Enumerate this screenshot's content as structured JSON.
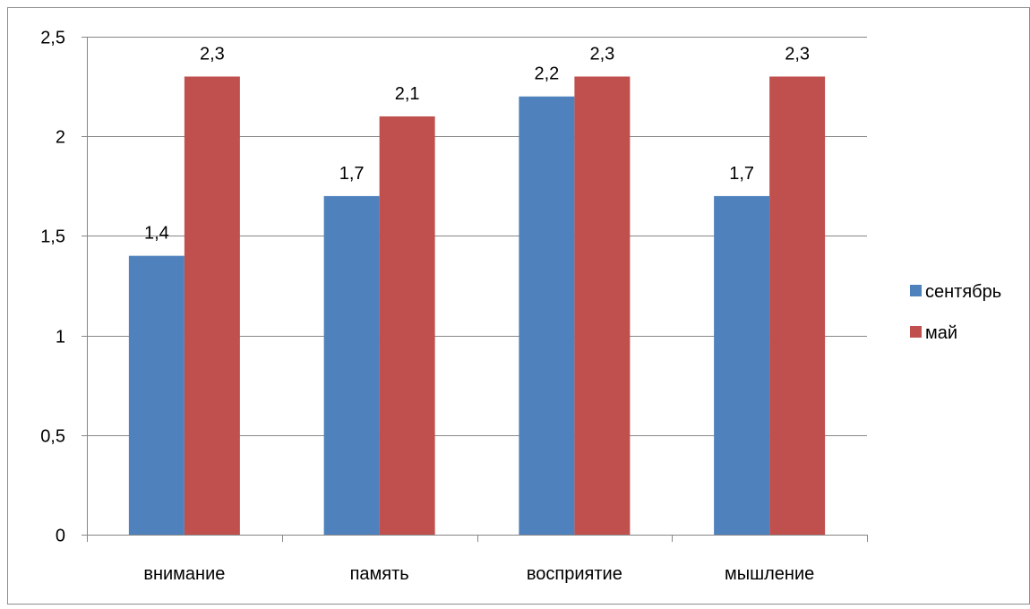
{
  "chart_data": {
    "type": "bar",
    "categories": [
      "внимание",
      "память",
      "восприятие",
      "мышление"
    ],
    "series": [
      {
        "name": "сентябрь",
        "color": "#4F81BD",
        "values": [
          1.4,
          1.7,
          2.2,
          1.7
        ],
        "labels": [
          "1,4",
          "1,7",
          "2,2",
          "1,7"
        ]
      },
      {
        "name": "май",
        "color": "#C0504D",
        "values": [
          2.3,
          2.1,
          2.3,
          2.3
        ],
        "labels": [
          "2,3",
          "2,1",
          "2,3",
          "2,3"
        ]
      }
    ],
    "ylim": [
      0,
      2.5
    ],
    "yticks": [
      0,
      0.5,
      1,
      1.5,
      2,
      2.5
    ],
    "ytick_labels": [
      "0",
      "0,5",
      "1",
      "1,5",
      "2",
      "2,5"
    ],
    "grid": true,
    "legend": "right",
    "title": "",
    "xlabel": "",
    "ylabel": ""
  }
}
